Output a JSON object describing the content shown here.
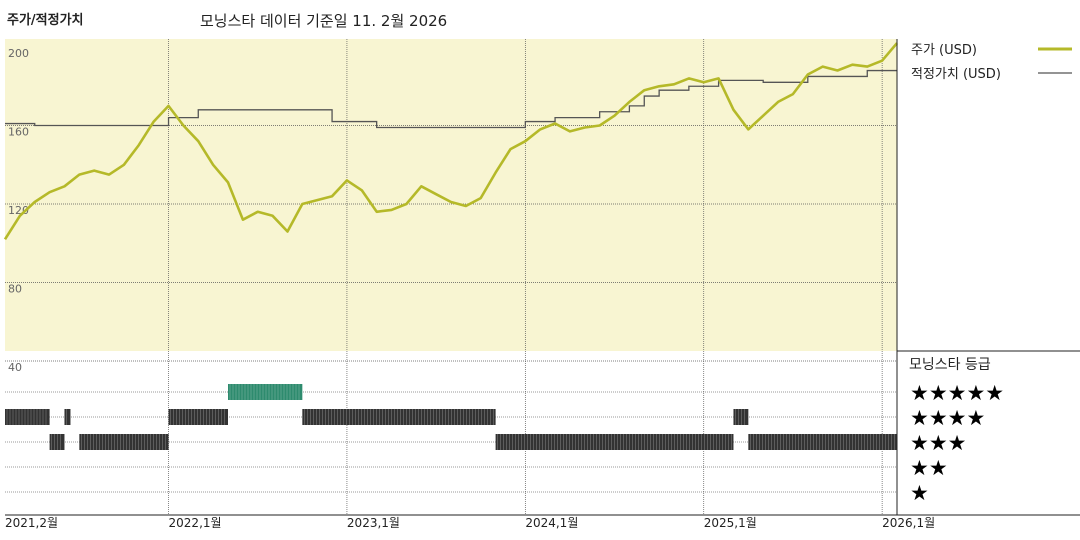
{
  "header": {
    "title": "주가/적정가치",
    "subtitle": "모닝스타 데이터 기준일 11. 2월 2026"
  },
  "colors": {
    "price": "#b5b929",
    "fair_value": "#555555",
    "plot_bg": "#f8f5d2",
    "rating_bar": "#333333",
    "rating_bar_5": "#2e8b6e"
  },
  "chart_data": {
    "type": "line",
    "x_range": [
      "2021-02",
      "2026-02"
    ],
    "x_ticks": [
      "2021,2월",
      "2022,1월",
      "2023,1월",
      "2024,1월",
      "2025,1월",
      "2026,1월"
    ],
    "y_ticks": [
      "200",
      "160",
      "120",
      "80",
      "40"
    ],
    "ylim": [
      40,
      200
    ],
    "legend": {
      "position": "right",
      "price_label": "주가 (USD)",
      "fair_value_label": "적정가치 (USD)"
    },
    "series": [
      {
        "name": "주가 (USD)",
        "points": [
          [
            "2021-02",
            102
          ],
          [
            "2021-03",
            114
          ],
          [
            "2021-04",
            121
          ],
          [
            "2021-05",
            126
          ],
          [
            "2021-06",
            129
          ],
          [
            "2021-07",
            135
          ],
          [
            "2021-08",
            137
          ],
          [
            "2021-09",
            135
          ],
          [
            "2021-10",
            140
          ],
          [
            "2021-11",
            150
          ],
          [
            "2021-12",
            162
          ],
          [
            "2022-01",
            170
          ],
          [
            "2022-02",
            160
          ],
          [
            "2022-03",
            152
          ],
          [
            "2022-04",
            140
          ],
          [
            "2022-05",
            131
          ],
          [
            "2022-06",
            112
          ],
          [
            "2022-07",
            116
          ],
          [
            "2022-08",
            114
          ],
          [
            "2022-09",
            106
          ],
          [
            "2022-10",
            120
          ],
          [
            "2022-11",
            122
          ],
          [
            "2022-12",
            124
          ],
          [
            "2023-01",
            132
          ],
          [
            "2023-02",
            127
          ],
          [
            "2023-03",
            116
          ],
          [
            "2023-04",
            117
          ],
          [
            "2023-05",
            120
          ],
          [
            "2023-06",
            129
          ],
          [
            "2023-07",
            125
          ],
          [
            "2023-08",
            121
          ],
          [
            "2023-09",
            119
          ],
          [
            "2023-10",
            123
          ],
          [
            "2023-11",
            136
          ],
          [
            "2023-12",
            148
          ],
          [
            "2024-01",
            152
          ],
          [
            "2024-02",
            158
          ],
          [
            "2024-03",
            161
          ],
          [
            "2024-04",
            157
          ],
          [
            "2024-05",
            159
          ],
          [
            "2024-06",
            160
          ],
          [
            "2024-07",
            165
          ],
          [
            "2024-08",
            172
          ],
          [
            "2024-09",
            178
          ],
          [
            "2024-10",
            180
          ],
          [
            "2024-11",
            181
          ],
          [
            "2024-12",
            184
          ],
          [
            "2025-01",
            182
          ],
          [
            "2025-02",
            184
          ],
          [
            "2025-03",
            168
          ],
          [
            "2025-04",
            158
          ],
          [
            "2025-05",
            165
          ],
          [
            "2025-06",
            172
          ],
          [
            "2025-07",
            176
          ],
          [
            "2025-08",
            186
          ],
          [
            "2025-09",
            190
          ],
          [
            "2025-10",
            188
          ],
          [
            "2025-11",
            191
          ],
          [
            "2025-12",
            190
          ],
          [
            "2026-01",
            193
          ],
          [
            "2026-02",
            202
          ]
        ]
      },
      {
        "name": "적정가치 (USD)",
        "step": true,
        "points": [
          [
            "2021-02",
            161
          ],
          [
            "2021-04",
            160
          ],
          [
            "2022-01",
            164
          ],
          [
            "2022-03",
            168
          ],
          [
            "2022-12",
            162
          ],
          [
            "2023-03",
            159
          ],
          [
            "2024-01",
            162
          ],
          [
            "2024-03",
            164
          ],
          [
            "2024-06",
            167
          ],
          [
            "2024-08",
            170
          ],
          [
            "2024-09",
            175
          ],
          [
            "2024-10",
            178
          ],
          [
            "2024-12",
            180
          ],
          [
            "2025-02",
            183
          ],
          [
            "2025-05",
            182
          ],
          [
            "2025-08",
            185
          ],
          [
            "2025-12",
            188
          ],
          [
            "2026-02",
            188
          ]
        ]
      }
    ]
  },
  "rating": {
    "title": "모닝스타 등급",
    "levels": [
      "★★★★★",
      "★★★★",
      "★★★",
      "★★",
      "★"
    ],
    "history": [
      {
        "stars": 4,
        "from": "2021-02",
        "to": "2021-05"
      },
      {
        "stars": 3,
        "from": "2021-05",
        "to": "2021-06"
      },
      {
        "stars": 4,
        "from": "2021-06",
        "to": "2021-06"
      },
      {
        "stars": 3,
        "from": "2021-07",
        "to": "2022-01"
      },
      {
        "stars": 4,
        "from": "2022-01",
        "to": "2022-05"
      },
      {
        "stars": 5,
        "from": "2022-05",
        "to": "2022-10"
      },
      {
        "stars": 4,
        "from": "2022-10",
        "to": "2023-11"
      },
      {
        "stars": 3,
        "from": "2023-11",
        "to": "2025-03"
      },
      {
        "stars": 4,
        "from": "2025-03",
        "to": "2025-04"
      },
      {
        "stars": 3,
        "from": "2025-04",
        "to": "2026-02"
      }
    ]
  }
}
